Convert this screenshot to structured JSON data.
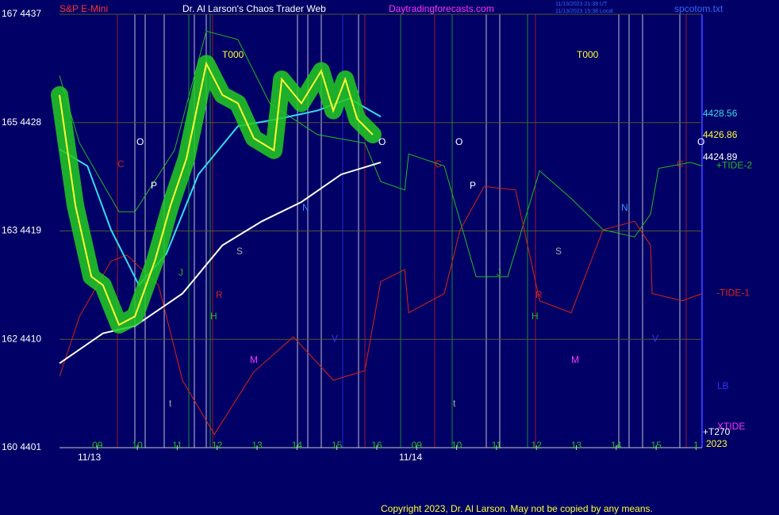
{
  "header": {
    "instrument": "S&P E-Mini",
    "title": "Dr. Al Larson's Chaos Trader Web",
    "site": "Daytradingforecasts.com",
    "file": "spcotom.txt",
    "stamp1": "11/13/2023 21:38 UT",
    "stamp2": "11/13/2023 15:38 Local"
  },
  "footer": "Copyright 2023, Dr. Al Larson. May not be copied by any means.",
  "price_labels": [
    "4428.56",
    "4426.86",
    "4424.89"
  ],
  "side_labels": [
    "LB",
    "XTIDE",
    "+T270",
    "2023"
  ],
  "annotations": [
    "T000",
    "T000",
    "O",
    "O",
    "O",
    "O",
    "C",
    "C",
    "C",
    "P",
    "P",
    "N",
    "N",
    "S",
    "S",
    "J",
    "J",
    "R",
    "R",
    "H",
    "H",
    "M",
    "M",
    "V",
    "V",
    "t",
    "t",
    "11/13",
    "11/14"
  ],
  "chart_data": {
    "type": "line",
    "xlim": [
      0.05,
      16.15
    ],
    "ylim": [
      4401,
      4437
    ],
    "xticks": [
      {
        "value": 1,
        "label": "09"
      },
      {
        "value": 2,
        "label": "10"
      },
      {
        "value": 3,
        "label": "11"
      },
      {
        "value": 4,
        "label": "12"
      },
      {
        "value": 5,
        "label": "13"
      },
      {
        "value": 6,
        "label": "14"
      },
      {
        "value": 7,
        "label": "15"
      },
      {
        "value": 8,
        "label": "16"
      },
      {
        "value": 9,
        "label": "09"
      },
      {
        "value": 10,
        "label": "10"
      },
      {
        "value": 11,
        "label": "11"
      },
      {
        "value": 12,
        "label": "12"
      },
      {
        "value": 13,
        "label": "13"
      },
      {
        "value": 14,
        "label": "14"
      },
      {
        "value": 15,
        "label": "15"
      },
      {
        "value": 16,
        "label": "1"
      }
    ],
    "yticks": [
      {
        "value": 4401,
        "label": "160 4401"
      },
      {
        "value": 4410,
        "label": "162 4410"
      },
      {
        "value": 4419,
        "label": "163 4419"
      },
      {
        "value": 4428,
        "label": "165 4428"
      },
      {
        "value": 4437,
        "label": "167 4437"
      }
    ],
    "grid": true,
    "series": [
      {
        "name": "+TIDE-2",
        "color": "#22bb22",
        "x": [
          0.05,
          0.55,
          1.54,
          1.94,
          2.93,
          3.73,
          4.52,
          5.32,
          6.51,
          7.7,
          8.1,
          8.7,
          8.8,
          9.69,
          10.49,
          11.28,
          12.08,
          12.87,
          13.67,
          14.46,
          14.86,
          15.06,
          15.86,
          16.15
        ],
        "values": [
          4431.9,
          4426.3,
          4420.6,
          4420.6,
          4425.7,
          4435.6,
          4434.9,
          4429.6,
          4427.0,
          4426.3,
          4423.1,
          4422.4,
          4425.4,
          4424.4,
          4415.2,
          4415.2,
          4424.0,
          4421.7,
          4419.1,
          4418.5,
          4420.4,
          4424.2,
          4424.7,
          4424.4
        ]
      },
      {
        "name": "-TIDE-1",
        "color": "#dd2211",
        "x": [
          0.05,
          0.55,
          1.34,
          1.74,
          2.53,
          3.13,
          3.93,
          4.92,
          5.91,
          6.91,
          7.7,
          8.1,
          8.7,
          8.8,
          9.69,
          10.09,
          10.69,
          11.48,
          12.08,
          12.87,
          13.67,
          14.46,
          14.86,
          14.9,
          15.66,
          16.15
        ],
        "values": [
          4406.9,
          4411.9,
          4416.5,
          4417.0,
          4414.5,
          4406.6,
          4402.1,
          4407.3,
          4410.2,
          4406.6,
          4407.4,
          4414.8,
          4415.8,
          4412.2,
          4413.8,
          4419.1,
          4422.7,
          4422.4,
          4413.2,
          4412.2,
          4419.1,
          4419.8,
          4417.8,
          4413.8,
          4413.2,
          4413.8
        ]
      },
      {
        "color": "#ffffff",
        "x": [
          0.05,
          1.14,
          1.94,
          3.13,
          4.13,
          5.12,
          6.11,
          7.11,
          8.1
        ],
        "values": [
          4408.0,
          4410.5,
          4411.1,
          4413.8,
          4417.8,
          4419.8,
          4421.4,
          4423.7,
          4424.7
        ]
      },
      {
        "color": "#33ddee",
        "x": [
          0.05,
          0.75,
          1.34,
          2.04,
          2.73,
          3.53,
          4.52,
          5.52,
          6.51,
          7.31,
          8.1
        ],
        "values": [
          4425.8,
          4424.4,
          4419.1,
          4414.5,
          4417.1,
          4423.7,
          4427.7,
          4428.3,
          4429.0,
          4430.0,
          4428.5
        ]
      },
      {
        "color": "#ffff33",
        "x": [
          0.05,
          0.45,
          0.85,
          1.14,
          1.54,
          1.94,
          2.44,
          2.83,
          3.23,
          3.73,
          4.13,
          4.52,
          4.92,
          5.42,
          5.62,
          6.11,
          6.61,
          6.91,
          7.21,
          7.51,
          7.9
        ],
        "values": [
          4430.3,
          4421.1,
          4415.2,
          4414.5,
          4411.2,
          4411.9,
          4416.5,
          4421.1,
          4425.0,
          4432.9,
          4430.3,
          4429.6,
          4426.7,
          4425.7,
          4431.6,
          4429.6,
          4432.3,
          4429.0,
          4431.6,
          4428.3,
          4427.0
        ]
      }
    ]
  }
}
